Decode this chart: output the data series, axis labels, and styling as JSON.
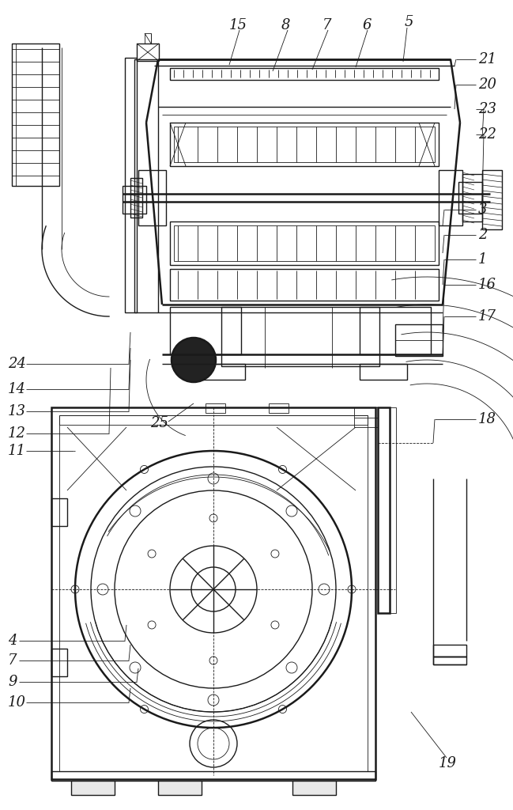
{
  "bg_color": "#ffffff",
  "line_color": "#1a1a1a",
  "fig_width": 6.49,
  "fig_height": 10.24,
  "dpi": 100
}
